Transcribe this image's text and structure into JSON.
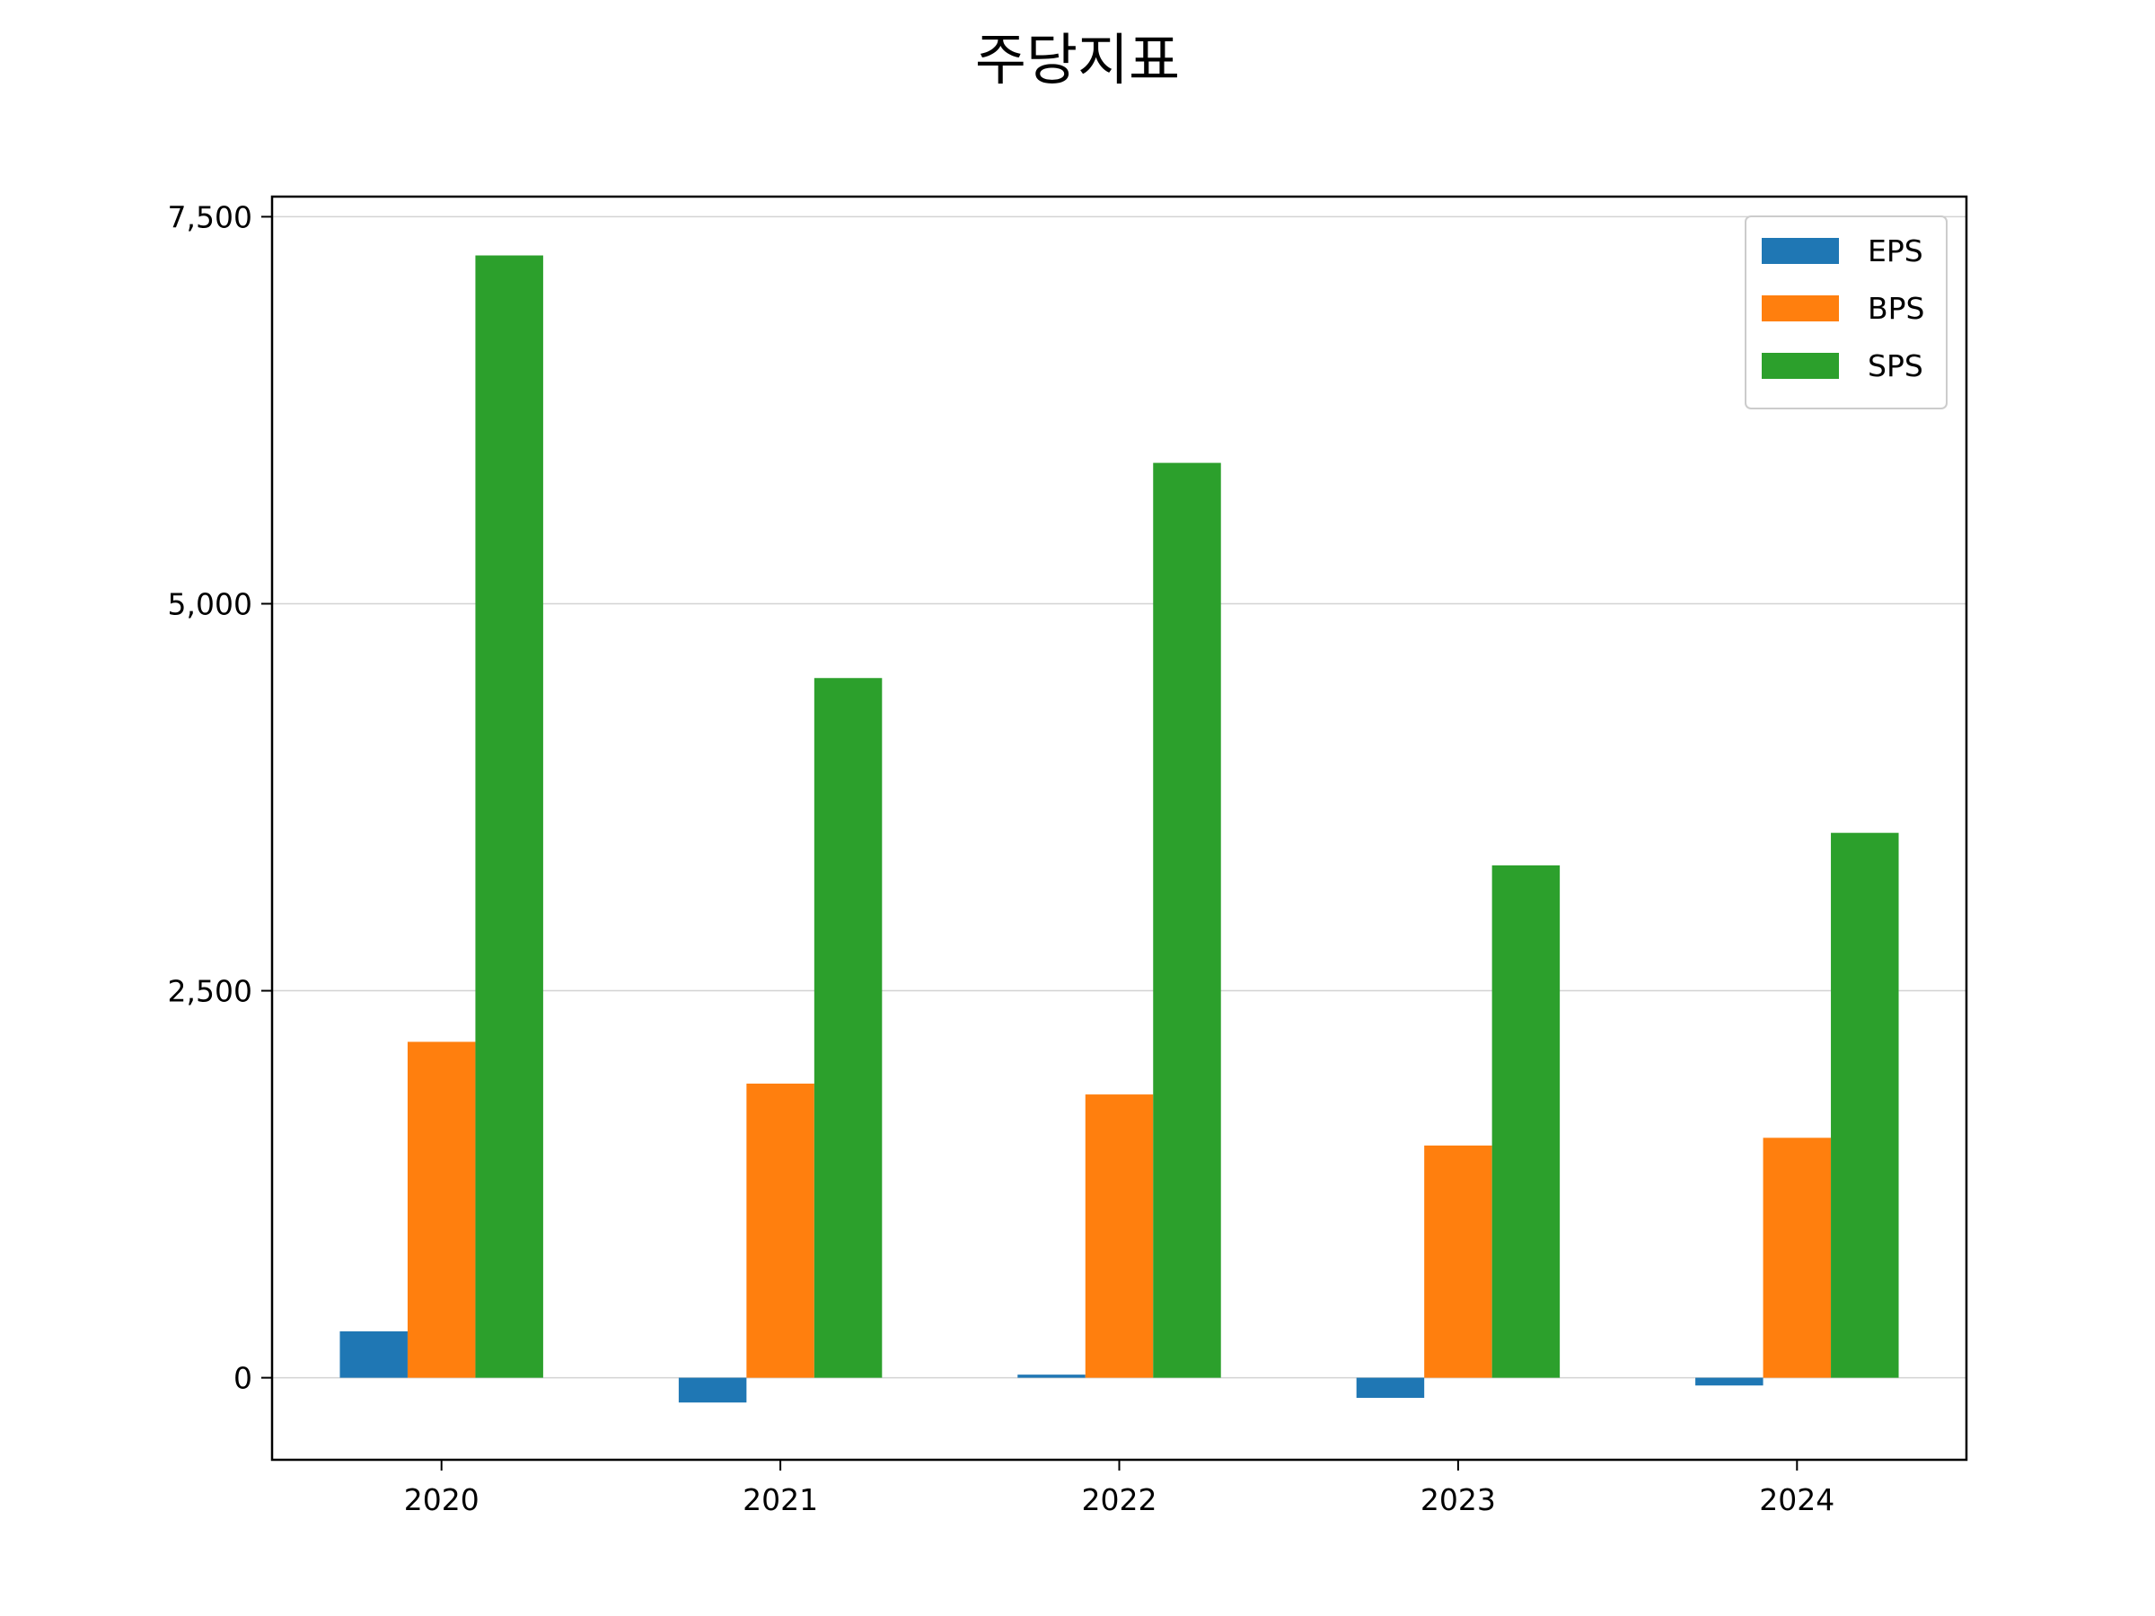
{
  "chart_data": {
    "type": "bar",
    "title": "주당지표",
    "xlabel": "",
    "ylabel": "",
    "categories": [
      "2020",
      "2021",
      "2022",
      "2023",
      "2024"
    ],
    "series": [
      {
        "name": "EPS",
        "color": "#1f77b4",
        "values": [
          300,
          -160,
          20,
          -130,
          -50
        ]
      },
      {
        "name": "BPS",
        "color": "#ff7f0e",
        "values": [
          2170,
          1900,
          1830,
          1500,
          1550
        ]
      },
      {
        "name": "SPS",
        "color": "#2ca02c",
        "values": [
          7250,
          4520,
          5910,
          3310,
          3520
        ]
      }
    ],
    "ylim": [
      -530,
      7630
    ],
    "yticks": [
      0,
      2500,
      5000,
      7500
    ],
    "ytick_labels": [
      "0",
      "2,500",
      "5,000",
      "7,500"
    ],
    "grid": "y",
    "legend_position": "top-right"
  }
}
